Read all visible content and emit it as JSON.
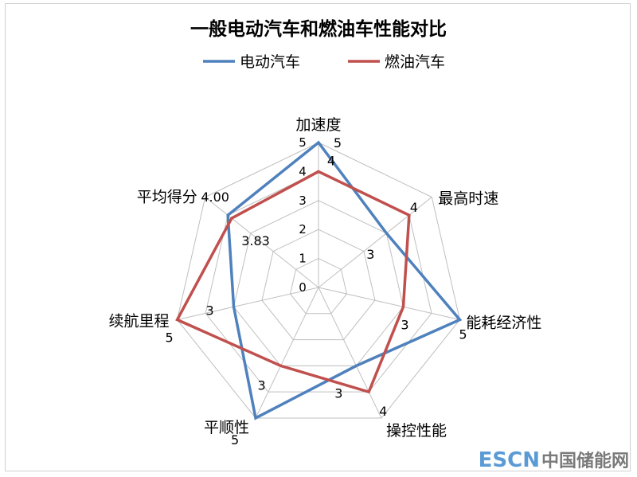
{
  "chart_data": {
    "type": "radar",
    "title": "一般电动汽车和燃油车性能对比",
    "axes": [
      "加速度",
      "最高时速",
      "能耗经济性",
      "操控性能",
      "平顺性",
      "续航里程",
      "平均得分"
    ],
    "rlim": [
      0,
      5
    ],
    "ticks": [
      "0",
      "1",
      "2",
      "3",
      "4",
      "5"
    ],
    "series": [
      {
        "name": "电动汽车",
        "color": "#4f81bd",
        "values": [
          5,
          3,
          5,
          3,
          5,
          3,
          4.0
        ],
        "labels": [
          "5",
          "3",
          "5",
          "3",
          "5",
          "3",
          "4.00"
        ]
      },
      {
        "name": "燃油汽车",
        "color": "#c0504d",
        "values": [
          4,
          4,
          3,
          4,
          3,
          5,
          3.83
        ],
        "labels": [
          "4",
          "4",
          "3",
          "4",
          "3",
          "5",
          "3.83"
        ]
      }
    ],
    "legend_position": "top"
  },
  "watermark": {
    "latin": "ESCN",
    "cn": "中国储能网"
  }
}
